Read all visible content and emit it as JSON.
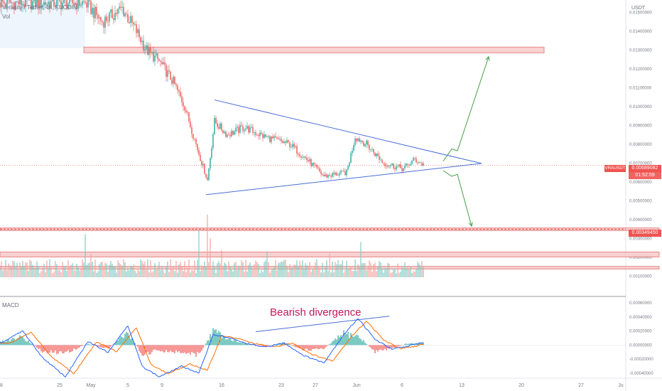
{
  "header": {
    "symbol_line": "Verasity / Tether, 4h, KUCOIN",
    "volume_label": "Vol",
    "macd_label": "MACD"
  },
  "chart_data": {
    "type": "candlestick",
    "symbol": "VRAUSDT",
    "interval": "4h",
    "exchange": "KUCOIN",
    "currency": "USDT",
    "annotation": "Bearish divergence",
    "last_price_label": "0.00689082",
    "countdown": "01:52:59",
    "support_label": "0.00349450",
    "price_axis": {
      "ticks": [
        "0.01500000",
        "0.01400000",
        "0.01300000",
        "0.01200000",
        "0.01100000",
        "0.01000000",
        "0.00900000",
        "0.00800000",
        "0.00700000",
        "0.00600000",
        "0.00500000",
        "0.00400000",
        "0.00300000",
        "0.00200000",
        "0.00100000"
      ],
      "range": [
        0.0,
        0.0155
      ]
    },
    "macd_axis": {
      "ticks": [
        "0.00060000",
        "0.00040000",
        "0.00020000",
        "0.00000000",
        "-0.00020000",
        "-0.00040000"
      ],
      "range": [
        -0.00045,
        0.00065
      ]
    },
    "time_axis": {
      "ticks": [
        {
          "label": "18",
          "idx": 0
        },
        {
          "label": "25",
          "idx": 42
        },
        {
          "label": "May",
          "idx": 64
        },
        {
          "label": "5",
          "idx": 90
        },
        {
          "label": "9",
          "idx": 114
        },
        {
          "label": "16",
          "idx": 156
        },
        {
          "label": "23",
          "idx": 198
        },
        {
          "label": "27",
          "idx": 222
        },
        {
          "label": "Jun",
          "idx": 251
        },
        {
          "label": "6",
          "idx": 283
        },
        {
          "label": "13",
          "idx": 325
        },
        {
          "label": "20",
          "idx": 367
        },
        {
          "label": "27",
          "idx": 409
        },
        {
          "label": "Ju",
          "idx": 437
        }
      ]
    },
    "key_points": [
      {
        "idx": 0,
        "price": 0.0155
      },
      {
        "idx": 60,
        "price": 0.0155
      },
      {
        "idx": 72,
        "price": 0.0145
      },
      {
        "idx": 86,
        "price": 0.0152
      },
      {
        "idx": 96,
        "price": 0.014
      },
      {
        "idx": 103,
        "price": 0.013
      },
      {
        "idx": 112,
        "price": 0.0124
      },
      {
        "idx": 122,
        "price": 0.0113
      },
      {
        "idx": 130,
        "price": 0.01
      },
      {
        "idx": 140,
        "price": 0.0075
      },
      {
        "idx": 146,
        "price": 0.0061
      },
      {
        "idx": 151,
        "price": 0.0092
      },
      {
        "idx": 160,
        "price": 0.0085
      },
      {
        "idx": 172,
        "price": 0.0089
      },
      {
        "idx": 186,
        "price": 0.0084
      },
      {
        "idx": 204,
        "price": 0.008
      },
      {
        "idx": 216,
        "price": 0.0072
      },
      {
        "idx": 228,
        "price": 0.0063
      },
      {
        "idx": 244,
        "price": 0.0065
      },
      {
        "idx": 250,
        "price": 0.0084
      },
      {
        "idx": 258,
        "price": 0.008
      },
      {
        "idx": 270,
        "price": 0.007
      },
      {
        "idx": 284,
        "price": 0.0067
      },
      {
        "idx": 292,
        "price": 0.0072
      },
      {
        "idx": 298,
        "price": 0.0069
      }
    ],
    "macd_key_points": [
      {
        "idx": 0,
        "macd": 2e-05,
        "hist": 5e-05
      },
      {
        "idx": 16,
        "macd": 0.0002,
        "hist": 0.00013
      },
      {
        "idx": 30,
        "macd": -0.00018,
        "hist": -0.0001
      },
      {
        "idx": 46,
        "macd": -0.00045,
        "hist": -0.00012
      },
      {
        "idx": 62,
        "macd": 5e-05,
        "hist": 2e-05
      },
      {
        "idx": 76,
        "macd": -0.0001,
        "hist": -6e-05
      },
      {
        "idx": 90,
        "macd": 0.00028,
        "hist": 0.0002
      },
      {
        "idx": 100,
        "macd": -0.0003,
        "hist": -0.00015
      },
      {
        "idx": 112,
        "macd": -0.00045,
        "hist": -8e-05
      },
      {
        "idx": 128,
        "macd": -0.0003,
        "hist": -0.00012
      },
      {
        "idx": 140,
        "macd": -0.0004,
        "hist": -0.00015
      },
      {
        "idx": 150,
        "macd": 0.00015,
        "hist": 0.00022
      },
      {
        "idx": 162,
        "macd": 0.0001,
        "hist": 0.0001
      },
      {
        "idx": 172,
        "macd": 3e-05,
        "hist": 3e-05
      },
      {
        "idx": 186,
        "macd": -3e-05,
        "hist": -2e-05
      },
      {
        "idx": 200,
        "macd": 3e-05,
        "hist": 4e-05
      },
      {
        "idx": 214,
        "macd": -0.00015,
        "hist": -8e-05
      },
      {
        "idx": 228,
        "macd": -0.00025,
        "hist": -5e-05
      },
      {
        "idx": 242,
        "macd": 0.00015,
        "hist": 0.00018
      },
      {
        "idx": 252,
        "macd": 0.00038,
        "hist": 0.00014
      },
      {
        "idx": 264,
        "macd": 8e-05,
        "hist": -0.0001
      },
      {
        "idx": 276,
        "macd": -6e-05,
        "hist": -5e-05
      },
      {
        "idx": 286,
        "macd": -2e-05,
        "hist": 2e-05
      },
      {
        "idx": 298,
        "macd": 4e-05,
        "hist": 3e-05
      }
    ],
    "macd_signal_lag": 6,
    "volume_spikes": [
      {
        "idx": 60,
        "vol": 0.55
      },
      {
        "idx": 64,
        "vol": 0.3
      },
      {
        "idx": 140,
        "vol": 0.6
      },
      {
        "idx": 146,
        "vol": 0.8
      },
      {
        "idx": 148,
        "vol": 0.5
      },
      {
        "idx": 156,
        "vol": 0.35
      },
      {
        "idx": 188,
        "vol": 0.32
      },
      {
        "idx": 232,
        "vol": 0.3
      },
      {
        "idx": 254,
        "vol": 0.45
      }
    ],
    "zones": [
      {
        "name": "resistance",
        "from": 0.01315,
        "to": 0.01285,
        "x_from_idx": 59,
        "x_to_idx": 383
      },
      {
        "name": "support-1",
        "from": 0.00356,
        "to": 0.00342,
        "x_from_idx": 0,
        "x_to_idx": 464
      },
      {
        "name": "support-2",
        "from": 0.00228,
        "to": 0.00202,
        "x_from_idx": 0,
        "x_to_idx": 464
      },
      {
        "name": "support-3",
        "from": 0.00152,
        "to": 0.00138,
        "x_from_idx": 0,
        "x_to_idx": 464
      }
    ],
    "triangle": {
      "upper": [
        {
          "idx": 151,
          "price": 0.01035
        },
        {
          "idx": 339,
          "price": 0.00698
        }
      ],
      "lower": [
        {
          "idx": 145,
          "price": 0.00532
        },
        {
          "idx": 339,
          "price": 0.00698
        }
      ]
    },
    "breakout_arrows": [
      {
        "name": "upside",
        "points": [
          {
            "idx": 312,
            "price": 0.0071
          },
          {
            "idx": 318,
            "price": 0.00775
          },
          {
            "idx": 322,
            "price": 0.00765
          },
          {
            "idx": 344,
            "price": 0.01265
          }
        ]
      },
      {
        "name": "downside",
        "points": [
          {
            "idx": 312,
            "price": 0.0066
          },
          {
            "idx": 318,
            "price": 0.0063
          },
          {
            "idx": 322,
            "price": 0.0064
          },
          {
            "idx": 332,
            "price": 0.00365
          }
        ]
      }
    ],
    "divergence_line": [
      {
        "idx": 180,
        "macd": 0.00019
      },
      {
        "idx": 274,
        "macd": 0.00041
      }
    ],
    "colors": {
      "up": "#26a69a",
      "down": "#ef5350",
      "zone_fill": "#f7c9c9",
      "zone_stroke": "#e57373",
      "triangle": "#4a6fd6",
      "arrow": "#43a047",
      "macd": "#2962ff",
      "signal": "#ff6d00",
      "annotation": "#c2185b",
      "highlight_bg": "#eef5fd"
    }
  }
}
